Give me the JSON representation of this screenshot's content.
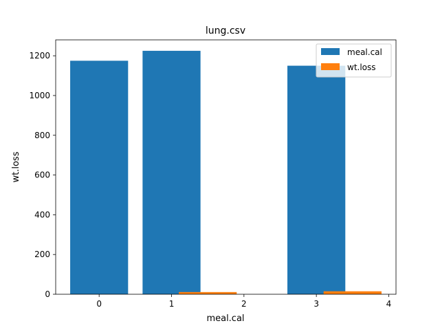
{
  "chart_data": {
    "type": "bar",
    "title": "lung.csv",
    "xlabel": "meal.cal",
    "ylabel": "wt.loss",
    "xlim": [
      -0.6,
      4.1
    ],
    "ylim": [
      0,
      1280
    ],
    "xticks": [
      "0",
      "1",
      "2",
      "3",
      "4"
    ],
    "yticks": [
      "0",
      "200",
      "400",
      "600",
      "800",
      "1000",
      "1200"
    ],
    "legend_position": "top-right",
    "grid": false,
    "series": [
      {
        "name": "meal.cal",
        "color": "#1f77b4",
        "bar_width": 0.8,
        "points": [
          {
            "x": 0,
            "y": 1175
          },
          {
            "x": 1,
            "y": 1225
          },
          {
            "x": 3,
            "y": 1150
          }
        ]
      },
      {
        "name": "wt.loss",
        "color": "#ff7f0e",
        "bar_width": 0.8,
        "points": [
          {
            "x": 1.5,
            "y": 11
          },
          {
            "x": 3.5,
            "y": 15
          }
        ]
      }
    ]
  }
}
